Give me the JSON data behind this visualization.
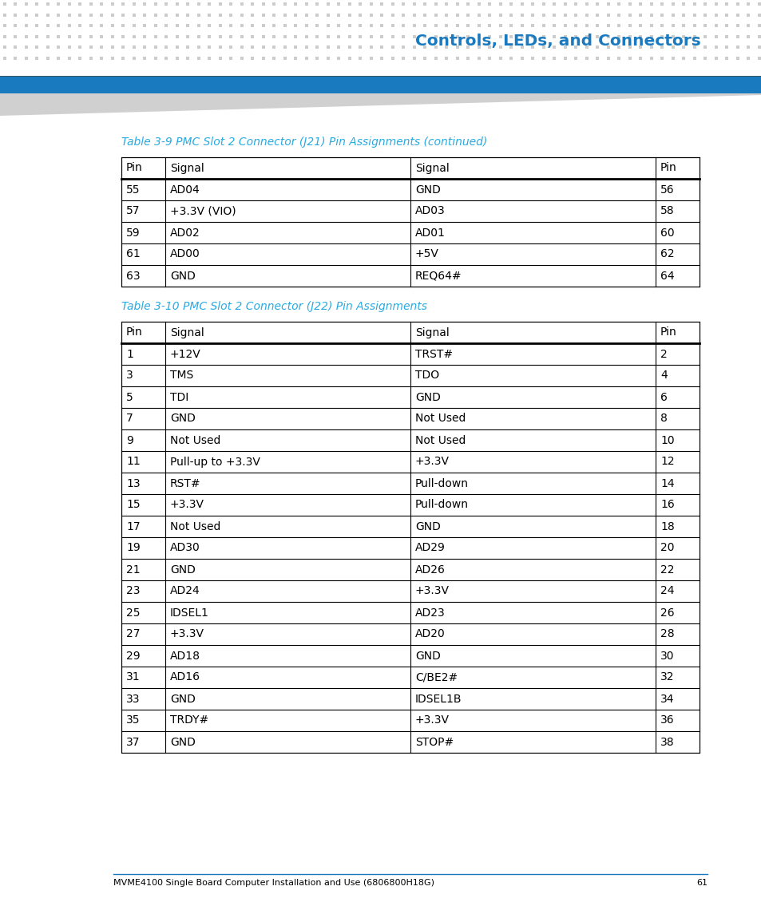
{
  "page_title": "Controls, LEDs, and Connectors",
  "page_title_color": "#1a7abf",
  "header_bar_color": "#1a7abf",
  "dot_pattern_color": "#cccccc",
  "table1_title": "Table 3-9 PMC Slot 2 Connector (J21) Pin Assignments (continued)",
  "table1_title_color": "#29abe2",
  "table1_headers": [
    "Pin",
    "Signal",
    "Signal",
    "Pin"
  ],
  "table1_rows": [
    [
      "55",
      "AD04",
      "GND",
      "56"
    ],
    [
      "57",
      "+3.3V (VIO)",
      "AD03",
      "58"
    ],
    [
      "59",
      "AD02",
      "AD01",
      "60"
    ],
    [
      "61",
      "AD00",
      "+5V",
      "62"
    ],
    [
      "63",
      "GND",
      "REQ64#",
      "64"
    ]
  ],
  "table2_title": "Table 3-10 PMC Slot 2 Connector (J22) Pin Assignments",
  "table2_title_color": "#29abe2",
  "table2_headers": [
    "Pin",
    "Signal",
    "Signal",
    "Pin"
  ],
  "table2_rows": [
    [
      "1",
      "+12V",
      "TRST#",
      "2"
    ],
    [
      "3",
      "TMS",
      "TDO",
      "4"
    ],
    [
      "5",
      "TDI",
      "GND",
      "6"
    ],
    [
      "7",
      "GND",
      "Not Used",
      "8"
    ],
    [
      "9",
      "Not Used",
      "Not Used",
      "10"
    ],
    [
      "11",
      "Pull-up to +3.3V",
      "+3.3V",
      "12"
    ],
    [
      "13",
      "RST#",
      "Pull-down",
      "14"
    ],
    [
      "15",
      "+3.3V",
      "Pull-down",
      "16"
    ],
    [
      "17",
      "Not Used",
      "GND",
      "18"
    ],
    [
      "19",
      "AD30",
      "AD29",
      "20"
    ],
    [
      "21",
      "GND",
      "AD26",
      "22"
    ],
    [
      "23",
      "AD24",
      "+3.3V",
      "24"
    ],
    [
      "25",
      "IDSEL1",
      "AD23",
      "26"
    ],
    [
      "27",
      "+3.3V",
      "AD20",
      "28"
    ],
    [
      "29",
      "AD18",
      "GND",
      "30"
    ],
    [
      "31",
      "AD16",
      "C/BE2#",
      "32"
    ],
    [
      "33",
      "GND",
      "IDSEL1B",
      "34"
    ],
    [
      "35",
      "TRDY#",
      "+3.3V",
      "36"
    ],
    [
      "37",
      "GND",
      "STOP#",
      "38"
    ]
  ],
  "footer_text": "MVME4100 Single Board Computer Installation and Use (6806800H18G)",
  "footer_page": "61",
  "footer_line_color": "#1a7abf",
  "bg_color": "#ffffff",
  "table_border_color": "#000000",
  "cell_text_color": "#000000"
}
